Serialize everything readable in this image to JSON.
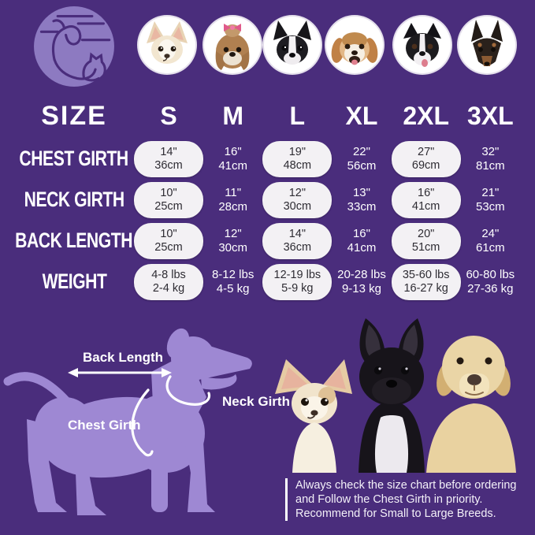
{
  "colors": {
    "background": "#4a2d7c",
    "logo-circle": "#8d7ac1",
    "silhouette": "#9e88d3",
    "pill-bg": "#f3f1f4",
    "pill-text": "#2e2c33"
  },
  "logo_icon": "dog-and-cat-logo",
  "breed_icons": [
    "chihuahua-photo",
    "shih-tzu-photo",
    "boston-terrier-photo",
    "beagle-photo",
    "border-collie-photo",
    "doberman-photo"
  ],
  "table": {
    "size_label": "SIZE",
    "sizes": [
      "S",
      "M",
      "L",
      "XL",
      "2XL",
      "3XL"
    ],
    "rows": [
      {
        "label": "CHEST GIRTH",
        "cells": [
          [
            "14\"",
            "36cm"
          ],
          [
            "16\"",
            "41cm"
          ],
          [
            "19\"",
            "48cm"
          ],
          [
            "22\"",
            "56cm"
          ],
          [
            "27\"",
            "69cm"
          ],
          [
            "32\"",
            "81cm"
          ]
        ]
      },
      {
        "label": "NECK GIRTH",
        "cells": [
          [
            "10\"",
            "25cm"
          ],
          [
            "11\"",
            "28cm"
          ],
          [
            "12\"",
            "30cm"
          ],
          [
            "13\"",
            "33cm"
          ],
          [
            "16\"",
            "41cm"
          ],
          [
            "21\"",
            "53cm"
          ]
        ]
      },
      {
        "label": "BACK LENGTH",
        "cells": [
          [
            "10\"",
            "25cm"
          ],
          [
            "12\"",
            "30cm"
          ],
          [
            "14\"",
            "36cm"
          ],
          [
            "16\"",
            "41cm"
          ],
          [
            "20\"",
            "51cm"
          ],
          [
            "24\"",
            "61cm"
          ]
        ]
      },
      {
        "label": "WEIGHT",
        "cells": [
          [
            "4-8 lbs",
            "2-4 kg"
          ],
          [
            "8-12 lbs",
            "4-5 kg"
          ],
          [
            "12-19 lbs",
            "5-9 kg"
          ],
          [
            "20-28 lbs",
            "9-13 kg"
          ],
          [
            "35-60 lbs",
            "16-27 kg"
          ],
          [
            "60-80 lbs",
            "27-36 kg"
          ]
        ]
      }
    ]
  },
  "diagram": {
    "back_length_label": "Back Length",
    "neck_girth_label": "Neck Girth",
    "chest_girth_label": "Chest Girth"
  },
  "trio_icon": "three-dogs-photo",
  "note": {
    "lines": [
      "Always check the size chart before ordering",
      "and Follow the Chest Girth in priority.",
      "Recommend for Small to Large Breeds."
    ]
  }
}
